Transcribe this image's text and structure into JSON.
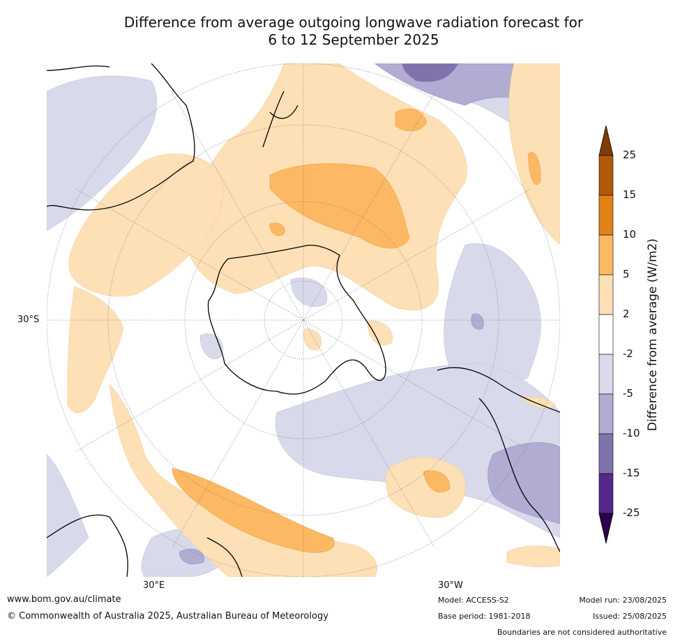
{
  "title_line1": "Difference from average outgoing longwave radiation forecast for",
  "title_line2": "6 to 12 September 2025",
  "axis_labels": {
    "lat_30s": "30°S",
    "lon_30e": "30°E",
    "lon_30w": "30°W"
  },
  "legend": {
    "label": "Difference from average (W/m2)",
    "ticks": [
      "25",
      "15",
      "10",
      "5",
      "2",
      "-2",
      "-5",
      "-10",
      "-15",
      "-25"
    ],
    "colors": [
      "#7f3b08",
      "#b35806",
      "#e08214",
      "#fdb863",
      "#fee0b6",
      "#ffffff",
      "#d8daeb",
      "#b2abd2",
      "#8073ac",
      "#542788",
      "#2d004b"
    ]
  },
  "footer": {
    "website": "www.bom.gov.au/climate",
    "copyright": "© Commonwealth of Australia 2025, Australian Bureau of Meteorology",
    "model": "Model: ACCESS-S2",
    "base_period": "Base period: 1981-2018",
    "model_run": "Model run: 23/08/2025",
    "issued": "Issued: 25/08/2025",
    "disclaimer": "Boundaries are not considered authoritative"
  },
  "colors": {
    "light_orange": "#fee0b6",
    "mid_orange": "#fdb863",
    "light_purple": "#d8daeb",
    "mid_purple": "#b2abd2",
    "dark_purple": "#8073ac"
  }
}
